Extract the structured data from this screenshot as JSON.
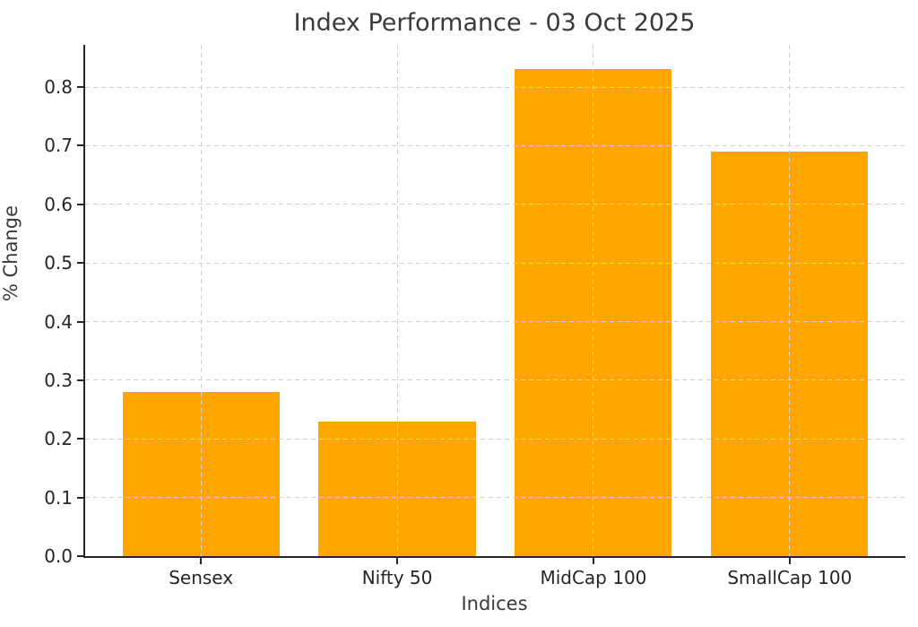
{
  "chart_data": {
    "type": "bar",
    "title": "Index Performance - 03 Oct 2025",
    "xlabel": "Indices",
    "ylabel": "% Change",
    "categories": [
      "Sensex",
      "Nifty 50",
      "MidCap 100",
      "SmallCap 100"
    ],
    "values": [
      0.28,
      0.23,
      0.83,
      0.69
    ],
    "bar_color": "#FFA500",
    "yticks": [
      0.0,
      0.1,
      0.2,
      0.3,
      0.4,
      0.5,
      0.6,
      0.7,
      0.8
    ],
    "ytick_labels": [
      "0.0",
      "0.1",
      "0.2",
      "0.3",
      "0.4",
      "0.5",
      "0.6",
      "0.7",
      "0.8"
    ],
    "ylim": [
      0,
      0.872
    ],
    "xlim": [
      -0.59,
      3.59
    ],
    "bar_width": 0.8,
    "grid": {
      "style": "dashed",
      "color": "#cfcfcf",
      "axes": "both",
      "above_bars": true
    },
    "legend": "none",
    "background_color": "#ffffff",
    "spine_color": "#262626",
    "text_color": "#262626"
  }
}
